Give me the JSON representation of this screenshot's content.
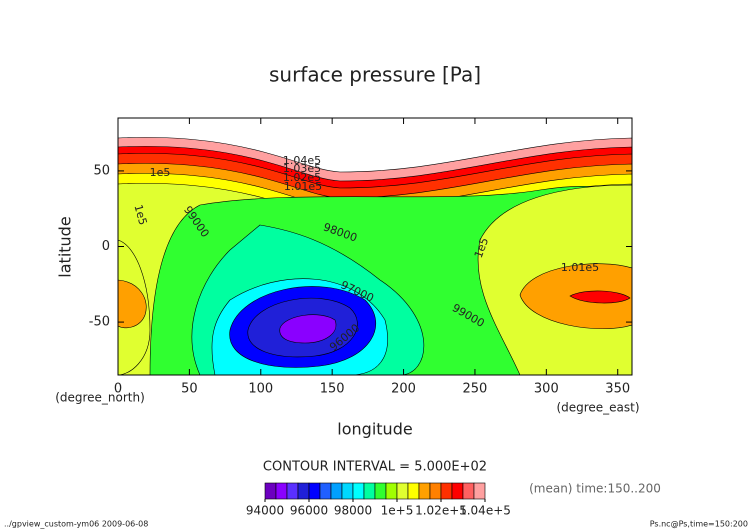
{
  "chart_data": {
    "type": "contour",
    "title": "surface pressure [Pa]",
    "x_label": "longitude",
    "y_label": "latitude",
    "x_unit": "(degree_east)",
    "y_unit": "(degree_north)",
    "xlim": [
      0,
      360
    ],
    "ylim": [
      -85,
      85
    ],
    "xticks": [
      0,
      50,
      100,
      150,
      200,
      250,
      300,
      350
    ],
    "yticks": [
      -50,
      0,
      50
    ],
    "contour_interval": "CONTOUR INTERVAL = 5.000E+02",
    "contour_labels": [
      "1.04e5",
      "1.03e5",
      "1.02e5",
      "1.01e5",
      "1e5",
      "1e5",
      "99000",
      "98000",
      "97000",
      "96000",
      "1e5",
      "99000",
      "1.01e5"
    ],
    "colorbar": {
      "levels": [
        94000,
        94500,
        95000,
        95500,
        96000,
        96500,
        97000,
        97500,
        98000,
        98500,
        99000,
        99500,
        100000,
        100500,
        101000,
        101500,
        102000,
        102500,
        103000,
        103500,
        104000
      ],
      "colors": [
        "#6c00c0",
        "#8a00ff",
        "#5a30ff",
        "#2020d8",
        "#0000ff",
        "#2060ff",
        "#00a0ff",
        "#00d8ff",
        "#00ffff",
        "#00ffa0",
        "#30ff30",
        "#a0ff00",
        "#e0ff30",
        "#ffff00",
        "#ffa000",
        "#ff8000",
        "#ff3000",
        "#ff0000",
        "#ff6060",
        "#ffa0a0"
      ],
      "ticks": [
        94000,
        96000,
        98000,
        {
          "value": 100000,
          "label": "1e+5"
        },
        {
          "value": 102000,
          "label": "1.02e+5"
        },
        {
          "value": 104000,
          "label": "1.04e+5"
        }
      ]
    },
    "mean_note": "(mean) time:150..200",
    "footer_left": "../gpview_custom-ym06  2009-06-08",
    "footer_right": "Ps.nc@Ps,time=150:200"
  }
}
